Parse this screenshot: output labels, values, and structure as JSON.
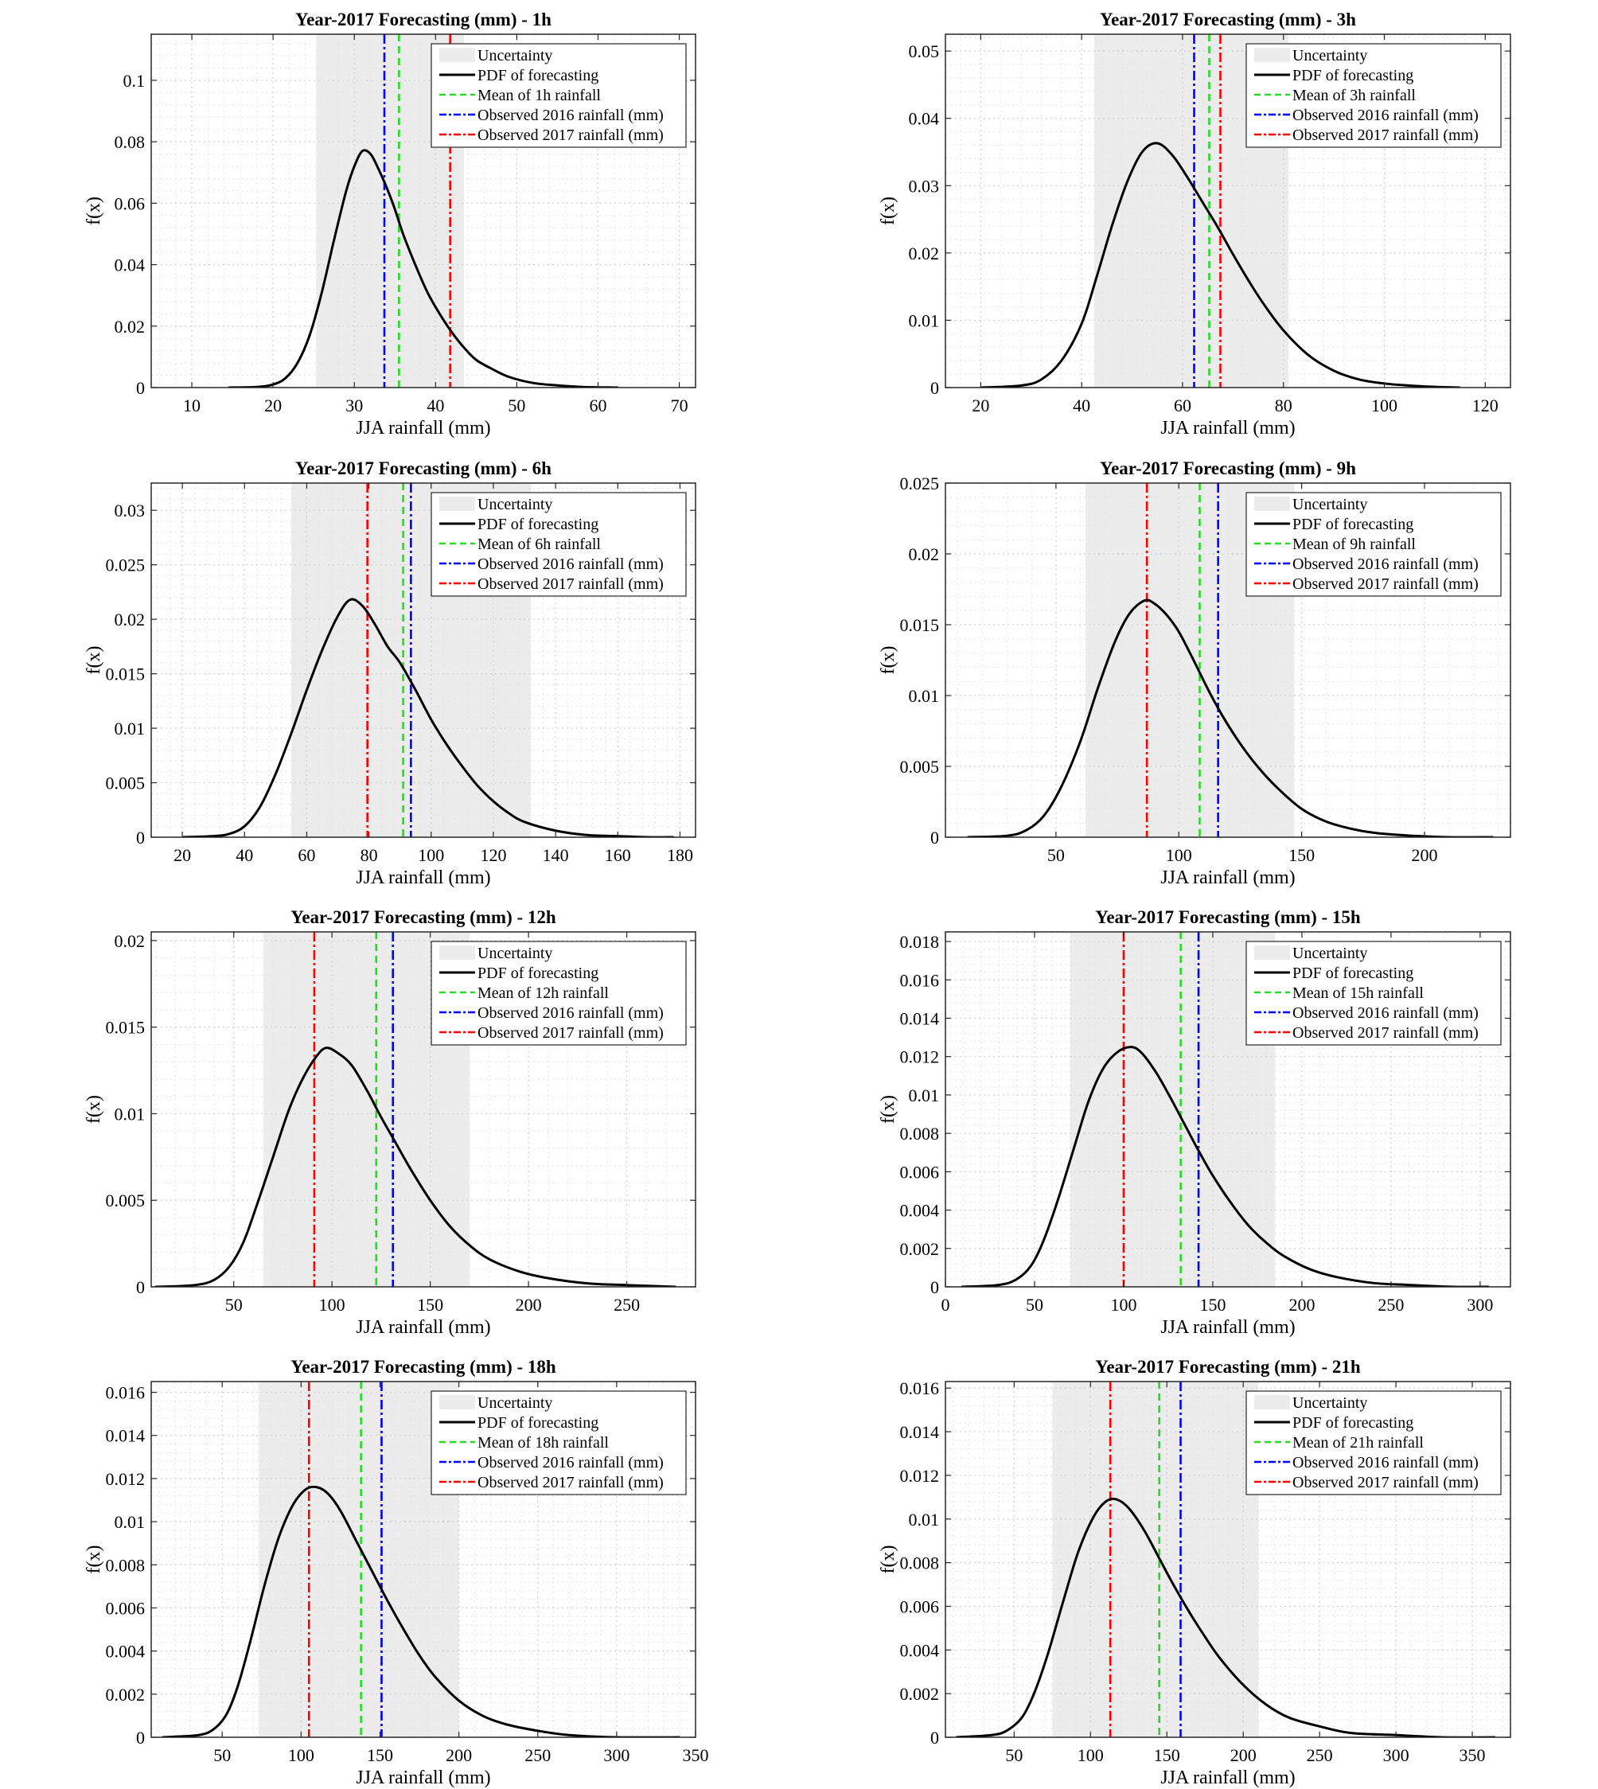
{
  "colors": {
    "pdf": "#000000",
    "mean": "#22dd22",
    "obs2016": "#0000ff",
    "obs2017": "#ff0000",
    "uncertainty": "#ececec"
  },
  "chart_data": [
    {
      "type": "line",
      "title": "Year-2017 Forecasting (mm) - 1h",
      "xlabel": "JJA rainfall (mm)",
      "ylabel": "f(x)",
      "xlim": [
        5,
        72
      ],
      "ylim": [
        0,
        0.115
      ],
      "xticks": [
        10,
        20,
        30,
        40,
        50,
        60,
        70
      ],
      "yticks": [
        0,
        0.02,
        0.04,
        0.06,
        0.08,
        0.1
      ],
      "grid": true,
      "legend_position": "top-right",
      "legend": [
        "Uncertainty",
        "PDF of forecasting",
        "Mean of 1h rainfall",
        "Observed 2016 rainfall (mm)",
        "Observed 2017 rainfall (mm)"
      ],
      "uncertainty": [
        25.3,
        43.5
      ],
      "mean": 35.5,
      "obs2016": 33.7,
      "obs2017": 41.8,
      "pdf": {
        "x": [
          14.5,
          18,
          20,
          21.5,
          23,
          24.5,
          26,
          27.5,
          29,
          30,
          31,
          32,
          33,
          34,
          35,
          36,
          37.5,
          39,
          40.5,
          42,
          43.5,
          45,
          47,
          49,
          52,
          55,
          58,
          62.5
        ],
        "y": [
          0,
          0.0002,
          0.001,
          0.003,
          0.008,
          0.017,
          0.031,
          0.048,
          0.064,
          0.072,
          0.077,
          0.076,
          0.071,
          0.065,
          0.058,
          0.05,
          0.04,
          0.031,
          0.024,
          0.018,
          0.013,
          0.009,
          0.006,
          0.0035,
          0.0015,
          0.0007,
          0.0002,
          0
        ]
      }
    },
    {
      "type": "line",
      "title": "Year-2017 Forecasting (mm) - 3h",
      "xlabel": "JJA rainfall (mm)",
      "ylabel": "f(x)",
      "xlim": [
        13,
        125
      ],
      "ylim": [
        0,
        0.0525
      ],
      "xticks": [
        20,
        40,
        60,
        80,
        100,
        120
      ],
      "yticks": [
        0,
        0.01,
        0.02,
        0.03,
        0.04,
        0.05
      ],
      "grid": true,
      "legend_position": "top-right",
      "legend": [
        "Uncertainty",
        "PDF of forecasting",
        "Mean of 3h rainfall",
        "Observed 2016 rainfall (mm)",
        "Observed 2017 rainfall (mm)"
      ],
      "uncertainty": [
        42.5,
        81
      ],
      "mean": 65.3,
      "obs2016": 62.3,
      "obs2017": 67.5,
      "pdf": {
        "x": [
          20,
          28,
          32,
          36,
          40,
          43,
          46,
          49,
          52,
          55,
          58,
          61,
          64,
          67,
          70,
          73,
          76,
          80,
          85,
          90,
          95,
          100,
          105,
          110,
          115
        ],
        "y": [
          0,
          0.0003,
          0.0012,
          0.004,
          0.0095,
          0.0165,
          0.024,
          0.0305,
          0.035,
          0.0363,
          0.0345,
          0.0312,
          0.0275,
          0.0238,
          0.0198,
          0.016,
          0.0125,
          0.0085,
          0.0048,
          0.0025,
          0.0012,
          0.0006,
          0.0003,
          0.0001,
          0
        ]
      }
    },
    {
      "type": "line",
      "title": "Year-2017 Forecasting (mm) - 6h",
      "xlabel": "JJA rainfall (mm)",
      "ylabel": "f(x)",
      "xlim": [
        10,
        185
      ],
      "ylim": [
        0,
        0.0325
      ],
      "xticks": [
        20,
        40,
        60,
        80,
        100,
        120,
        140,
        160,
        180
      ],
      "yticks": [
        0,
        0.005,
        0.01,
        0.015,
        0.02,
        0.025,
        0.03
      ],
      "grid": true,
      "legend_position": "top-right",
      "legend": [
        "Uncertainty",
        "PDF of forecasting",
        "Mean of 6h rainfall",
        "Observed 2016 rainfall (mm)",
        "Observed 2017 rainfall (mm)"
      ],
      "uncertainty": [
        55,
        132
      ],
      "mean": 91,
      "obs2016": 93.5,
      "obs2017": 79.5,
      "pdf": {
        "x": [
          20,
          30,
          35,
          40,
          45,
          50,
          55,
          60,
          65,
          70,
          74,
          78,
          82,
          86,
          90,
          95,
          100,
          105,
          110,
          115,
          120,
          125,
          130,
          140,
          150,
          160,
          170,
          178
        ],
        "y": [
          0,
          0.0001,
          0.0003,
          0.001,
          0.0028,
          0.0058,
          0.0095,
          0.0135,
          0.0172,
          0.0203,
          0.0218,
          0.0212,
          0.0195,
          0.0175,
          0.016,
          0.0135,
          0.0108,
          0.0085,
          0.0065,
          0.0047,
          0.0033,
          0.0022,
          0.0014,
          0.0006,
          0.0002,
          0.0001,
          0,
          0
        ]
      }
    },
    {
      "type": "line",
      "title": "Year-2017 Forecasting (mm) - 9h",
      "xlabel": "JJA rainfall (mm)",
      "ylabel": "f(x)",
      "xlim": [
        5,
        235
      ],
      "ylim": [
        0,
        0.025
      ],
      "xticks": [
        50,
        100,
        150,
        200
      ],
      "yticks": [
        0,
        0.005,
        0.01,
        0.015,
        0.02,
        0.025
      ],
      "grid": true,
      "legend_position": "top-right",
      "legend": [
        "Uncertainty",
        "PDF of forecasting",
        "Mean of 9h rainfall",
        "Observed 2016 rainfall (mm)",
        "Observed 2017 rainfall (mm)"
      ],
      "uncertainty": [
        62,
        147
      ],
      "mean": 108.5,
      "obs2016": 116,
      "obs2017": 87,
      "pdf": {
        "x": [
          14,
          30,
          38,
          45,
          52,
          60,
          67,
          74,
          80,
          86,
          90,
          95,
          100,
          106,
          112,
          118,
          125,
          132,
          140,
          150,
          160,
          170,
          180,
          195,
          210,
          228
        ],
        "y": [
          0,
          0.0001,
          0.0005,
          0.0015,
          0.0035,
          0.0068,
          0.0105,
          0.0138,
          0.0158,
          0.0167,
          0.0165,
          0.0157,
          0.0145,
          0.0125,
          0.0104,
          0.0085,
          0.0066,
          0.005,
          0.0035,
          0.002,
          0.0011,
          0.0006,
          0.0003,
          0.0001,
          0,
          0
        ]
      }
    },
    {
      "type": "line",
      "title": "Year-2017 Forecasting (mm) - 12h",
      "xlabel": "JJA rainfall (mm)",
      "ylabel": "f(x)",
      "xlim": [
        8,
        285
      ],
      "ylim": [
        0,
        0.0205
      ],
      "xticks": [
        50,
        100,
        150,
        200,
        250
      ],
      "yticks": [
        0,
        0.005,
        0.01,
        0.015,
        0.02
      ],
      "grid": true,
      "legend_position": "top-right",
      "legend": [
        "Uncertainty",
        "PDF of forecasting",
        "Mean of 12h rainfall",
        "Observed 2016 rainfall (mm)",
        "Observed 2017 rainfall (mm)"
      ],
      "uncertainty": [
        65,
        170
      ],
      "mean": 122.5,
      "obs2016": 131,
      "obs2017": 91,
      "pdf": {
        "x": [
          10,
          30,
          40,
          48,
          55,
          62,
          70,
          78,
          85,
          92,
          97,
          103,
          110,
          118,
          125,
          133,
          140,
          150,
          160,
          170,
          180,
          195,
          210,
          230,
          250,
          275
        ],
        "y": [
          0,
          0.0001,
          0.0004,
          0.0012,
          0.0026,
          0.0048,
          0.0075,
          0.0102,
          0.012,
          0.0133,
          0.0138,
          0.0135,
          0.0128,
          0.0113,
          0.0098,
          0.0082,
          0.0068,
          0.005,
          0.0035,
          0.0024,
          0.0016,
          0.0009,
          0.0005,
          0.0002,
          0.0001,
          0
        ]
      }
    },
    {
      "type": "line",
      "title": "Year-2017 Forecasting (mm) - 15h",
      "xlabel": "JJA rainfall (mm)",
      "ylabel": "f(x)",
      "xlim": [
        0,
        317
      ],
      "ylim": [
        0,
        0.0185
      ],
      "xticks": [
        0,
        50,
        100,
        150,
        200,
        250,
        300
      ],
      "yticks": [
        0,
        0.002,
        0.004,
        0.006,
        0.008,
        0.01,
        0.012,
        0.014,
        0.016,
        0.018
      ],
      "grid": true,
      "legend_position": "top-right",
      "legend": [
        "Uncertainty",
        "PDF of forecasting",
        "Mean of 15h rainfall",
        "Observed 2016 rainfall (mm)",
        "Observed 2017 rainfall (mm)"
      ],
      "uncertainty": [
        70,
        185
      ],
      "mean": 132,
      "obs2016": 142,
      "obs2017": 100,
      "pdf": {
        "x": [
          9,
          30,
          40,
          48,
          55,
          63,
          72,
          80,
          88,
          96,
          104,
          110,
          118,
          126,
          134,
          142,
          150,
          160,
          170,
          180,
          190,
          205,
          220,
          240,
          260,
          285,
          305
        ],
        "y": [
          0,
          0.0001,
          0.0004,
          0.0011,
          0.0024,
          0.0045,
          0.0072,
          0.0096,
          0.0113,
          0.0122,
          0.0125,
          0.0122,
          0.0112,
          0.0099,
          0.0085,
          0.0071,
          0.0058,
          0.0044,
          0.0032,
          0.0023,
          0.0016,
          0.0009,
          0.0005,
          0.0002,
          0.0001,
          0,
          0
        ]
      }
    },
    {
      "type": "line",
      "title": "Year-2017 Forecasting (mm) - 18h",
      "xlabel": "JJA rainfall (mm)",
      "ylabel": "f(x)",
      "xlim": [
        5,
        350
      ],
      "ylim": [
        0,
        0.0165
      ],
      "xticks": [
        50,
        100,
        150,
        200,
        250,
        300,
        350
      ],
      "yticks": [
        0,
        0.002,
        0.004,
        0.006,
        0.008,
        0.01,
        0.012,
        0.014,
        0.016
      ],
      "grid": true,
      "legend_position": "top-right",
      "legend": [
        "Uncertainty",
        "PDF of forecasting",
        "Mean of 18h rainfall",
        "Observed 2016 rainfall (mm)",
        "Observed 2017 rainfall (mm)"
      ],
      "uncertainty": [
        73,
        200
      ],
      "mean": 138,
      "obs2016": 151,
      "obs2017": 105,
      "pdf": {
        "x": [
          12,
          35,
          45,
          53,
          60,
          68,
          77,
          86,
          95,
          103,
          110,
          117,
          125,
          135,
          145,
          155,
          165,
          175,
          185,
          200,
          215,
          230,
          250,
          270,
          300,
          340
        ],
        "y": [
          0,
          0.0001,
          0.0004,
          0.0011,
          0.0024,
          0.0045,
          0.0071,
          0.0093,
          0.0108,
          0.0115,
          0.0116,
          0.0113,
          0.0105,
          0.0091,
          0.0077,
          0.0063,
          0.005,
          0.0038,
          0.0028,
          0.0017,
          0.001,
          0.0006,
          0.0003,
          0.0001,
          0,
          0
        ]
      }
    },
    {
      "type": "line",
      "title": "Year-2017 Forecasting (mm) - 21h",
      "xlabel": "JJA rainfall (mm)",
      "ylabel": "f(x)",
      "xlim": [
        5,
        375
      ],
      "ylim": [
        0,
        0.0163
      ],
      "xticks": [
        50,
        100,
        150,
        200,
        250,
        300,
        350
      ],
      "yticks": [
        0,
        0.002,
        0.004,
        0.006,
        0.008,
        0.01,
        0.012,
        0.014,
        0.016
      ],
      "grid": true,
      "legend_position": "top-right",
      "legend": [
        "Uncertainty",
        "PDF of forecasting",
        "Mean of 21h rainfall",
        "Observed 2016 rainfall (mm)",
        "Observed 2017 rainfall (mm)"
      ],
      "uncertainty": [
        75,
        210
      ],
      "mean": 145,
      "obs2016": 159,
      "obs2017": 113,
      "pdf": {
        "x": [
          12,
          35,
          45,
          55,
          63,
          72,
          82,
          92,
          102,
          110,
          117,
          125,
          135,
          145,
          155,
          165,
          175,
          185,
          200,
          215,
          230,
          250,
          270,
          300,
          330,
          365
        ],
        "y": [
          0,
          0.0001,
          0.0003,
          0.0009,
          0.002,
          0.0038,
          0.0062,
          0.0085,
          0.0101,
          0.0108,
          0.0109,
          0.0105,
          0.0095,
          0.0082,
          0.0069,
          0.0057,
          0.0046,
          0.0036,
          0.0024,
          0.0015,
          0.0009,
          0.0005,
          0.0002,
          0.0001,
          0,
          0
        ]
      }
    }
  ]
}
